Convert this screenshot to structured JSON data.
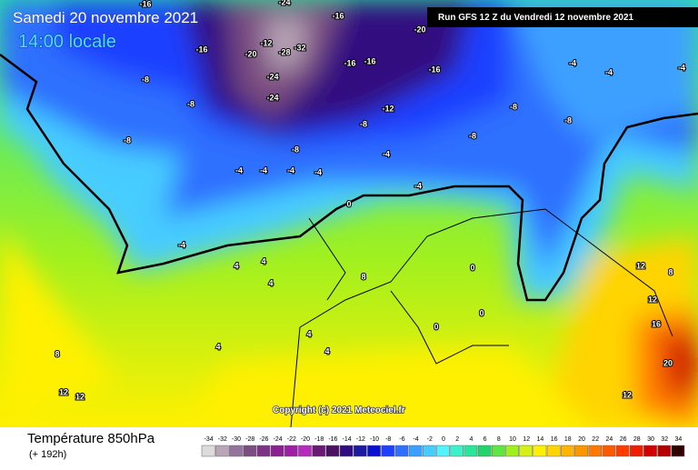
{
  "header": {
    "date": "Samedi 20 novembre 2021",
    "time": "14:00 locale",
    "run": "Run GFS 12 Z du Vendredi 12 novembre 2021"
  },
  "copyright": "Copyright (c) 2021 Meteociel.fr",
  "footer": {
    "title": "Température 850hPa",
    "lead": "(+ 192h)"
  },
  "map_labels": [
    -16,
    -24,
    -16,
    -20,
    -16,
    -12,
    -20,
    -28,
    -32,
    -24,
    -24,
    -16,
    -16,
    -16,
    -12,
    -8,
    -8,
    -8,
    -8,
    -8,
    -8,
    -8,
    -8,
    -4,
    -4,
    -4,
    -4,
    -4,
    -4,
    0,
    -4,
    4,
    4,
    4,
    8,
    4,
    4,
    4,
    8,
    12,
    12,
    0,
    0,
    0,
    -4,
    -4,
    -4,
    12,
    8,
    12,
    16,
    20,
    12
  ],
  "legend": {
    "values": [
      -34,
      -32,
      -30,
      -28,
      -26,
      -24,
      -22,
      -20,
      -18,
      -16,
      -14,
      -12,
      -10,
      -8,
      -6,
      -4,
      -2,
      0,
      2,
      4,
      6,
      8,
      10,
      12,
      14,
      16,
      18,
      20,
      22,
      24,
      26,
      28,
      30,
      32,
      34
    ],
    "colors": [
      "#dcdcdc",
      "#b8a6b8",
      "#94749a",
      "#7c4d80",
      "#7f3386",
      "#8a2190",
      "#9e1fa6",
      "#b52bbd",
      "#6a1a72",
      "#4c1063",
      "#300c80",
      "#1b1ba0",
      "#0b10d0",
      "#1e40ff",
      "#2f70ff",
      "#3ca0ff",
      "#46ccff",
      "#52f2ff",
      "#3cf0c8",
      "#2ae69a",
      "#22d46a",
      "#5fe640",
      "#a0f020",
      "#d4f014",
      "#fff000",
      "#ffd400",
      "#ffb400",
      "#ff9600",
      "#ff7800",
      "#ff5a00",
      "#ff3c00",
      "#f01e00",
      "#d20000",
      "#b40000",
      "#300000"
    ]
  }
}
